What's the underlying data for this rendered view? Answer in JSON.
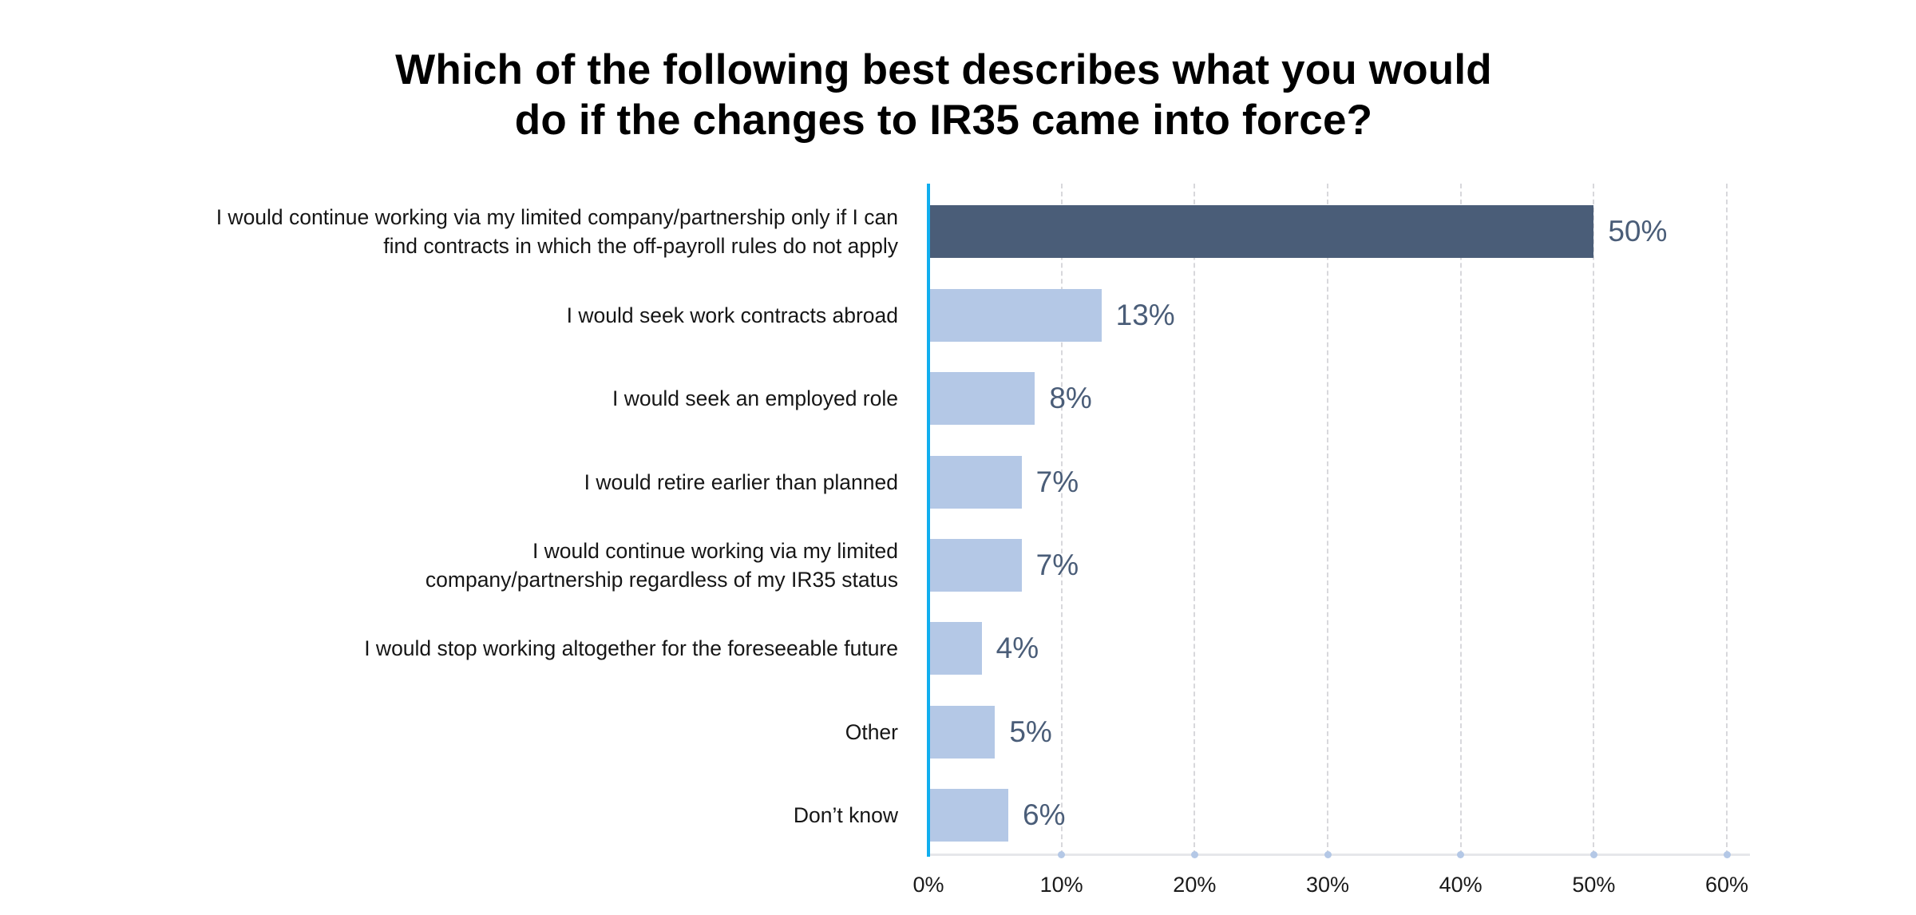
{
  "title": {
    "lines": [
      "Which of the following best describes what you would",
      "do if the changes to IR35 came into force?"
    ]
  },
  "colors": {
    "highlight_bar": "#4a5d78",
    "normal_bar": "#b4c8e6",
    "y_axis": "#10aeee",
    "value_label": "#4a5d78",
    "gridline": "#d8d8dc",
    "tick_dot": "#b4c8e6"
  },
  "axis": {
    "ticks": [
      "0%",
      "10%",
      "20%",
      "30%",
      "40%",
      "50%",
      "60%"
    ]
  },
  "rows": [
    {
      "label_lines": [
        "I would continue working via my limited company/partnership only if I can",
        "find contracts in which the off-payroll rules do not apply"
      ],
      "value": 50,
      "value_label": "50%",
      "highlight": true
    },
    {
      "label_lines": [
        "I would seek work contracts abroad"
      ],
      "value": 13,
      "value_label": "13%",
      "highlight": false
    },
    {
      "label_lines": [
        "I would seek an employed role"
      ],
      "value": 8,
      "value_label": "8%",
      "highlight": false
    },
    {
      "label_lines": [
        "I would retire earlier than planned"
      ],
      "value": 7,
      "value_label": "7%",
      "highlight": false
    },
    {
      "label_lines": [
        "I would continue working via my limited",
        "company/partnership regardless of my IR35 status"
      ],
      "value": 7,
      "value_label": "7%",
      "highlight": false
    },
    {
      "label_lines": [
        "I would stop working altogether for the foreseeable future"
      ],
      "value": 4,
      "value_label": "4%",
      "highlight": false
    },
    {
      "label_lines": [
        "Other"
      ],
      "value": 5,
      "value_label": "5%",
      "highlight": false
    },
    {
      "label_lines": [
        "Don’t know"
      ],
      "value": 6,
      "value_label": "6%",
      "highlight": false
    }
  ],
  "chart_data": {
    "type": "bar",
    "orientation": "horizontal",
    "title": "Which of the following best describes what you would do if the changes to IR35 came into force?",
    "categories": [
      "I would continue working via my limited company/partnership only if I can find contracts in which the off-payroll rules do not apply",
      "I would seek work contracts abroad",
      "I would seek an employed role",
      "I would retire earlier than planned",
      "I would continue working via my limited company/partnership regardless of my IR35 status",
      "I would stop working altogether for the foreseeable future",
      "Other",
      "Don’t know"
    ],
    "values": [
      50,
      13,
      8,
      7,
      7,
      4,
      5,
      6
    ],
    "value_labels": [
      "50%",
      "13%",
      "8%",
      "7%",
      "7%",
      "4%",
      "5%",
      "6%"
    ],
    "xlabel": "",
    "ylabel": "",
    "xlim": [
      0,
      60
    ],
    "x_ticks": [
      "0%",
      "10%",
      "20%",
      "30%",
      "40%",
      "50%",
      "60%"
    ],
    "grid": "vertical dashed",
    "legend": null,
    "highlighted_category_index": 0
  }
}
